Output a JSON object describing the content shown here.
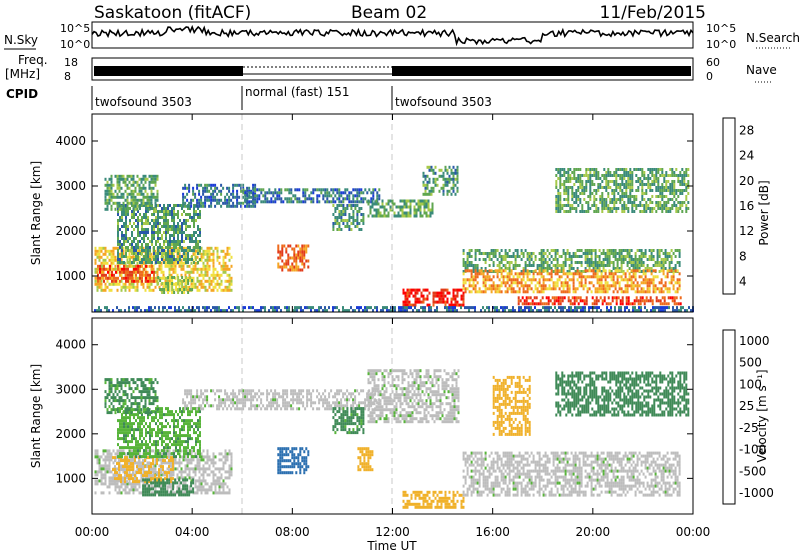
{
  "header": {
    "station": "Saskatoon (fitACF)",
    "beam": "Beam 02",
    "date": "11/Feb/2015"
  },
  "top_panels": {
    "nsky_label": "N.Sky",
    "nsky_ticks": [
      "10^5",
      "10^0"
    ],
    "nsearch_label": "N.Search",
    "nsearch_ticks": [
      "10^5",
      "10^0"
    ],
    "freq_label": "Freq.",
    "freq_unit": "[MHz]",
    "freq_ticks": [
      "18",
      "8"
    ],
    "nave_label": "Nave",
    "nave_ticks": [
      "60",
      "0"
    ],
    "cpid_label": "CPID",
    "cpid_segments": [
      {
        "label": "twofsound 3503",
        "start_h": 0,
        "end_h": 6
      },
      {
        "label": "normal (fast) 151",
        "start_h": 6,
        "end_h": 12
      },
      {
        "label": "twofsound 3503",
        "start_h": 12,
        "end_h": 24
      }
    ]
  },
  "colors": {
    "power_scale": [
      "#1a3bd6",
      "#2a58a8",
      "#3a8a7a",
      "#5fa650",
      "#a6c94a",
      "#f0e040",
      "#f5a623",
      "#ee6a1c",
      "#e23a1a",
      "#ff0000"
    ],
    "velocity_scale": [
      "#1f3ea8",
      "#2b6fb0",
      "#3f8a57",
      "#57b43a",
      "#bdbdbd",
      "#bdbdbd",
      "#f0b12a",
      "#f07a1c",
      "#ea2a1a"
    ]
  },
  "chart_data": [
    {
      "type": "heatmap",
      "name": "power",
      "ylabel": "Slant Range [km]",
      "xlim_h": [
        0,
        24
      ],
      "ylim_km": [
        200,
        4600
      ],
      "yticks": [
        1000,
        2000,
        3000,
        4000
      ],
      "colorbar": {
        "label": "Power [dB]",
        "ticks": [
          "28",
          "24",
          "20",
          "16",
          "12",
          "8",
          "4"
        ],
        "range": [
          0,
          30
        ]
      },
      "regions": [
        {
          "x": [
            0.1,
            5.6
          ],
          "y": [
            700,
            1650
          ],
          "v": 17
        },
        {
          "x": [
            0.2,
            2.5
          ],
          "y": [
            880,
            1250
          ],
          "v": 24
        },
        {
          "x": [
            1.0,
            4.3
          ],
          "y": [
            1300,
            2600
          ],
          "v": 9
        },
        {
          "x": [
            0.5,
            2.6
          ],
          "y": [
            2500,
            3250
          ],
          "v": 10
        },
        {
          "x": [
            2.6,
            4.0
          ],
          "y": [
            600,
            1000
          ],
          "v": 13
        },
        {
          "x": [
            3.6,
            6.5
          ],
          "y": [
            2550,
            3050
          ],
          "v": 6
        },
        {
          "x": [
            6.0,
            11.5
          ],
          "y": [
            2650,
            2950
          ],
          "v": 6
        },
        {
          "x": [
            7.4,
            8.6
          ],
          "y": [
            1100,
            1700
          ],
          "v": 23
        },
        {
          "x": [
            9.6,
            10.8
          ],
          "y": [
            2000,
            2600
          ],
          "v": 9
        },
        {
          "x": [
            11.0,
            13.6
          ],
          "y": [
            2300,
            2700
          ],
          "v": 10
        },
        {
          "x": [
            13.2,
            14.6
          ],
          "y": [
            2800,
            3450
          ],
          "v": 9
        },
        {
          "x": [
            12.4,
            14.8
          ],
          "y": [
            380,
            720
          ],
          "v": 27
        },
        {
          "x": [
            14.8,
            23.5
          ],
          "y": [
            1100,
            1600
          ],
          "v": 10
        },
        {
          "x": [
            14.8,
            23.5
          ],
          "y": [
            650,
            1150
          ],
          "v": 20
        },
        {
          "x": [
            17.0,
            23.5
          ],
          "y": [
            350,
            550
          ],
          "v": 25
        },
        {
          "x": [
            18.5,
            23.8
          ],
          "y": [
            2400,
            3400
          ],
          "v": 10
        },
        {
          "x": [
            0.0,
            24.0
          ],
          "y": [
            250,
            330
          ],
          "v": 5
        }
      ]
    },
    {
      "type": "heatmap",
      "name": "velocity",
      "ylabel": "Slant Range [km]",
      "xlabel": "Time UT",
      "xlim_h": [
        0,
        24
      ],
      "ylim_km": [
        200,
        4600
      ],
      "xticks": [
        "00:00",
        "04:00",
        "08:00",
        "12:00",
        "16:00",
        "20:00",
        "00:00"
      ],
      "yticks": [
        1000,
        2000,
        3000,
        4000
      ],
      "colorbar": {
        "label": "Velocity [m s⁻¹]",
        "ticks": [
          "1000",
          "500",
          "100",
          "25",
          "-25",
          "-100",
          "-500",
          "-1000"
        ]
      },
      "regions": [
        {
          "x": [
            0.1,
            5.6
          ],
          "y": [
            700,
            1650
          ],
          "v": 0
        },
        {
          "x": [
            0.8,
            3.2
          ],
          "y": [
            900,
            1500
          ],
          "v": -120
        },
        {
          "x": [
            2.0,
            4.0
          ],
          "y": [
            600,
            1000
          ],
          "v": 150
        },
        {
          "x": [
            1.0,
            4.3
          ],
          "y": [
            1500,
            2600
          ],
          "v": 80
        },
        {
          "x": [
            0.5,
            2.6
          ],
          "y": [
            2500,
            3250
          ],
          "v": 120
        },
        {
          "x": [
            3.6,
            11.5
          ],
          "y": [
            2550,
            3000
          ],
          "v": 0
        },
        {
          "x": [
            7.4,
            8.6
          ],
          "y": [
            1100,
            1700
          ],
          "v": 700
        },
        {
          "x": [
            9.6,
            10.8
          ],
          "y": [
            2000,
            2600
          ],
          "v": 120
        },
        {
          "x": [
            10.6,
            11.2
          ],
          "y": [
            1200,
            1700
          ],
          "v": -150
        },
        {
          "x": [
            11.0,
            14.6
          ],
          "y": [
            2300,
            3450
          ],
          "v": 0
        },
        {
          "x": [
            12.4,
            14.8
          ],
          "y": [
            380,
            720
          ],
          "v": -200
        },
        {
          "x": [
            14.8,
            23.5
          ],
          "y": [
            650,
            1600
          ],
          "v": 0
        },
        {
          "x": [
            18.5,
            23.8
          ],
          "y": [
            2400,
            3400
          ],
          "v": 150
        },
        {
          "x": [
            16.0,
            17.5
          ],
          "y": [
            2000,
            3300
          ],
          "v": -300
        }
      ]
    }
  ]
}
